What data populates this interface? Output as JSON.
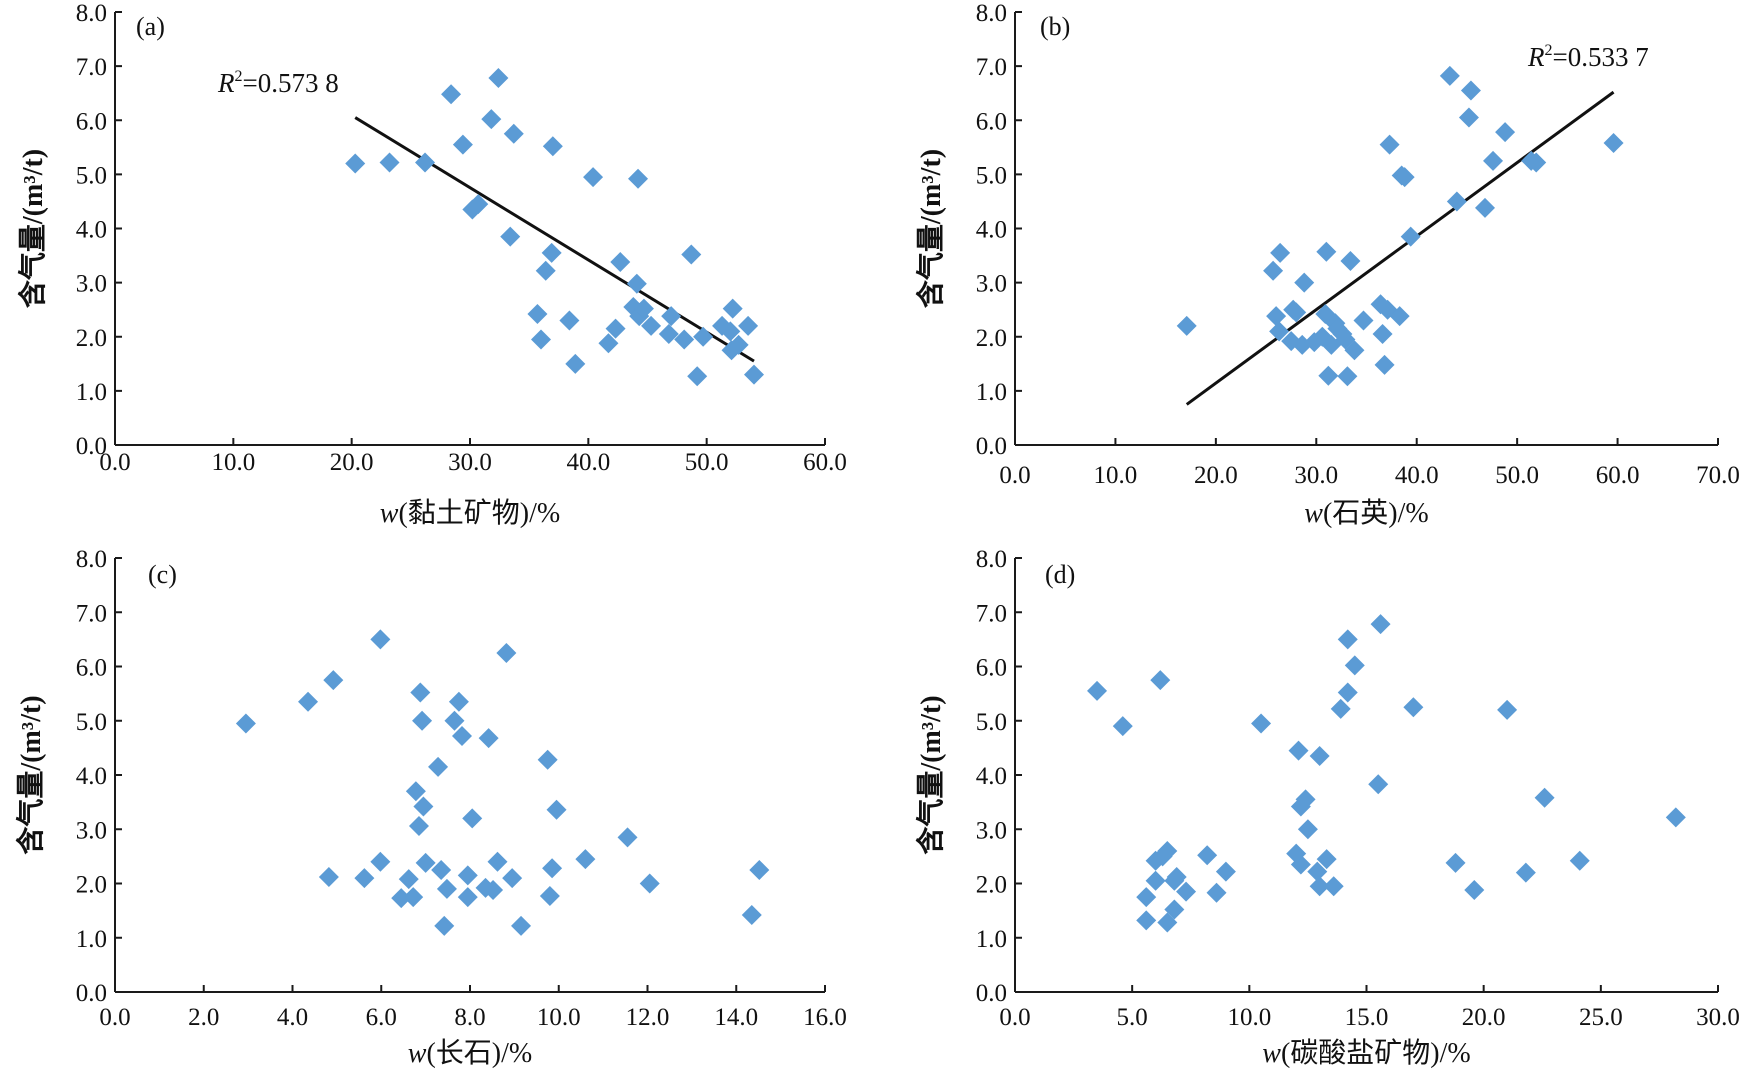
{
  "chart_data": [
    {
      "type": "scatter",
      "panel_label": "(a)",
      "xlabel_var": "w",
      "xlabel": "(黏土矿物)/%",
      "ylabel": "含气量/(m³/t)",
      "xlim": [
        0,
        60
      ],
      "ylim": [
        0,
        8
      ],
      "x_ticks": [
        "0.0",
        "10.0",
        "20.0",
        "30.0",
        "40.0",
        "50.0",
        "60.0"
      ],
      "y_ticks": [
        "0.0",
        "1.0",
        "2.0",
        "3.0",
        "4.0",
        "5.0",
        "6.0",
        "7.0",
        "8.0"
      ],
      "marker_color": "#5B9BD5",
      "r2_label": "R",
      "r2_value": "=0.573 8",
      "trendline": {
        "x": [
          20.3,
          54.0
        ],
        "y": [
          6.05,
          1.55
        ]
      },
      "points": {
        "x": [
          20.3,
          23.2,
          26.2,
          28.4,
          29.4,
          30.2,
          30.7,
          31.8,
          32.4,
          33.4,
          33.7,
          35.7,
          36.0,
          36.4,
          36.9,
          37.0,
          38.4,
          38.9,
          40.4,
          41.7,
          42.3,
          42.7,
          43.8,
          44.1,
          44.2,
          44.3,
          44.7,
          45.3,
          46.8,
          47.0,
          48.1,
          48.7,
          49.2,
          49.7,
          51.3,
          52.0,
          52.1,
          52.2,
          52.7,
          53.5,
          54.0
        ],
        "y": [
          5.2,
          5.22,
          5.22,
          6.48,
          5.55,
          4.35,
          4.45,
          6.02,
          6.78,
          3.85,
          5.75,
          2.42,
          1.95,
          3.22,
          3.55,
          5.52,
          2.3,
          1.5,
          4.95,
          1.88,
          2.15,
          3.38,
          2.55,
          2.98,
          4.92,
          2.38,
          2.52,
          2.2,
          2.05,
          2.38,
          1.95,
          3.52,
          1.27,
          2.0,
          2.2,
          2.1,
          1.75,
          2.52,
          1.85,
          2.2,
          1.3
        ]
      }
    },
    {
      "type": "scatter",
      "panel_label": "(b)",
      "xlabel_var": "w",
      "xlabel": "(石英)/%",
      "ylabel": "含气量/(m³/t)",
      "xlim": [
        0,
        70
      ],
      "ylim": [
        0,
        8
      ],
      "x_ticks": [
        "0.0",
        "10.0",
        "20.0",
        "30.0",
        "40.0",
        "50.0",
        "60.0",
        "70.0"
      ],
      "y_ticks": [
        "0.0",
        "1.0",
        "2.0",
        "3.0",
        "4.0",
        "5.0",
        "6.0",
        "7.0",
        "8.0"
      ],
      "marker_color": "#5B9BD5",
      "r2_label": "R",
      "r2_value": "=0.533 7",
      "trendline": {
        "x": [
          17.1,
          59.6
        ],
        "y": [
          0.75,
          6.52
        ]
      },
      "points": {
        "x": [
          17.1,
          25.7,
          26.0,
          26.3,
          26.4,
          27.5,
          27.7,
          28.0,
          28.6,
          28.8,
          29.8,
          30.6,
          30.9,
          31.0,
          31.2,
          31.5,
          31.9,
          32.1,
          32.6,
          32.9,
          33.1,
          33.4,
          33.8,
          34.7,
          36.4,
          36.6,
          36.8,
          37.1,
          37.3,
          38.3,
          38.5,
          38.8,
          39.4,
          43.3,
          44.0,
          45.2,
          45.4,
          46.8,
          47.6,
          48.8,
          51.4,
          51.9,
          59.6
        ],
        "y": [
          2.2,
          3.22,
          2.38,
          2.1,
          3.55,
          1.92,
          2.5,
          2.45,
          1.85,
          3.0,
          1.9,
          2.0,
          2.42,
          3.57,
          1.28,
          1.85,
          2.25,
          2.15,
          2.05,
          1.95,
          1.27,
          3.4,
          1.75,
          2.3,
          2.6,
          2.05,
          1.48,
          2.5,
          5.55,
          2.38,
          4.98,
          4.95,
          3.85,
          6.82,
          4.5,
          6.05,
          6.55,
          4.38,
          5.25,
          5.78,
          5.25,
          5.22,
          5.58
        ]
      }
    },
    {
      "type": "scatter",
      "panel_label": "(c)",
      "xlabel_var": "w",
      "xlabel": "(长石)/%",
      "ylabel": "含气量/(m³/t)",
      "xlim": [
        0,
        16
      ],
      "ylim": [
        0,
        8
      ],
      "x_ticks": [
        "0.0",
        "2.0",
        "4.0",
        "6.0",
        "8.0",
        "10.0",
        "12.0",
        "14.0",
        "16.0"
      ],
      "y_ticks": [
        "0.0",
        "1.0",
        "2.0",
        "3.0",
        "4.0",
        "5.0",
        "6.0",
        "7.0",
        "8.0"
      ],
      "marker_color": "#5B9BD5",
      "points": {
        "x": [
          2.95,
          4.35,
          4.82,
          4.92,
          5.62,
          5.98,
          5.98,
          6.45,
          6.62,
          6.72,
          6.78,
          6.85,
          6.88,
          6.92,
          6.95,
          7.0,
          7.28,
          7.35,
          7.42,
          7.48,
          7.65,
          7.75,
          7.82,
          7.95,
          7.95,
          8.05,
          8.35,
          8.42,
          8.52,
          8.62,
          8.82,
          8.95,
          9.15,
          9.75,
          9.8,
          9.85,
          9.95,
          10.6,
          11.55,
          12.05,
          14.35,
          14.52
        ],
        "y": [
          4.95,
          5.35,
          2.12,
          5.75,
          2.1,
          2.4,
          6.5,
          1.73,
          2.08,
          1.75,
          3.7,
          3.06,
          5.52,
          5.0,
          3.42,
          2.38,
          4.15,
          2.25,
          1.22,
          1.9,
          5.0,
          5.35,
          4.72,
          1.75,
          2.15,
          3.2,
          1.92,
          4.68,
          1.88,
          2.4,
          6.25,
          2.1,
          1.22,
          4.28,
          1.77,
          2.28,
          3.36,
          2.45,
          2.85,
          2.0,
          1.42,
          2.25
        ]
      }
    },
    {
      "type": "scatter",
      "panel_label": "(d)",
      "xlabel_var": "w",
      "xlabel": "(碳酸盐矿物)/%",
      "ylabel": "含气量/(m³/t)",
      "xlim": [
        0,
        30
      ],
      "ylim": [
        0,
        8
      ],
      "x_ticks": [
        "0.0",
        "5.0",
        "10.0",
        "15.0",
        "20.0",
        "25.0",
        "30.0"
      ],
      "y_ticks": [
        "0.0",
        "1.0",
        "2.0",
        "3.0",
        "4.0",
        "5.0",
        "6.0",
        "7.0",
        "8.0"
      ],
      "marker_color": "#5B9BD5",
      "points": {
        "x": [
          3.5,
          4.6,
          5.6,
          5.6,
          6.0,
          6.0,
          6.2,
          6.3,
          6.5,
          6.5,
          6.8,
          6.8,
          6.9,
          7.3,
          8.2,
          8.6,
          9.0,
          10.5,
          12.0,
          12.1,
          12.2,
          12.2,
          12.4,
          12.5,
          12.9,
          13.0,
          13.0,
          13.3,
          13.6,
          13.9,
          14.2,
          14.2,
          14.5,
          15.5,
          15.6,
          17.0,
          18.8,
          19.6,
          21.0,
          21.8,
          22.6,
          24.1,
          28.2
        ],
        "y": [
          5.55,
          4.9,
          1.75,
          1.32,
          2.42,
          2.05,
          5.75,
          2.5,
          2.6,
          1.28,
          2.05,
          1.52,
          2.12,
          1.85,
          2.52,
          1.83,
          2.22,
          4.95,
          2.55,
          4.45,
          3.42,
          2.35,
          3.55,
          3.0,
          2.22,
          4.35,
          1.95,
          2.45,
          1.95,
          5.22,
          6.5,
          5.52,
          6.02,
          3.83,
          6.78,
          5.25,
          2.38,
          1.88,
          5.2,
          2.2,
          3.58,
          2.42,
          3.22
        ]
      }
    }
  ]
}
